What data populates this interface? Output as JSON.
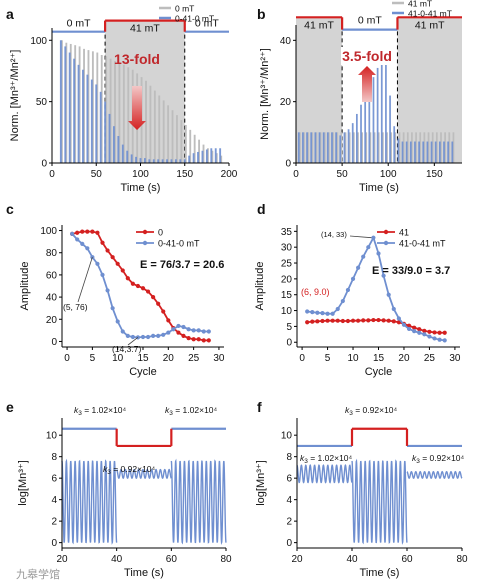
{
  "colors": {
    "red": "#d42020",
    "blue": "#6f8fd0",
    "gray": "#bdbdbd",
    "shade": "#d4d4d4",
    "dark_red": "#c0282c"
  },
  "watermark": {
    "text": "九皋学馆"
  },
  "chart_data": [
    {
      "panel": "a",
      "type": "bar",
      "ylabel": "Norm. [Mn³⁺/Mn²⁺]",
      "xlabel": "Time (s)",
      "xlim": [
        0,
        200
      ],
      "ylim": [
        0,
        110
      ],
      "xticks": [
        "0",
        "50",
        "100",
        "150",
        "200"
      ],
      "yticks": [
        "0",
        "50",
        "100"
      ],
      "field_segments": [
        {
          "label": "0 mT",
          "from": 0,
          "to": 60
        },
        {
          "label": "41 mT",
          "from": 60,
          "to": 150
        },
        {
          "label": "0 mT",
          "from": 150,
          "to": 200
        }
      ],
      "field_levels": {
        "low": 107,
        "high": 116
      },
      "shaded_region": [
        60,
        150
      ],
      "annotation": "13-fold",
      "legend": [
        {
          "name": "0 mT",
          "color": "gray"
        },
        {
          "name": "0-41-0 mT",
          "color": "blue"
        }
      ],
      "series": [
        {
          "name": "0 mT",
          "color": "gray",
          "period": 5.0,
          "start": 10,
          "values": [
            100,
            98,
            97,
            96,
            95,
            93,
            92,
            91,
            90,
            88,
            87,
            85,
            83,
            82,
            80,
            78,
            76,
            73,
            70,
            67,
            63,
            59,
            55,
            51,
            47,
            43,
            39,
            35,
            31,
            27,
            23,
            19,
            15,
            12,
            10,
            8,
            6
          ]
        },
        {
          "name": "0-41-0 mT",
          "color": "blue",
          "period": 5.0,
          "start": 10,
          "values": [
            100,
            95,
            90,
            85,
            80,
            76,
            72,
            68,
            64,
            58,
            50,
            40,
            30,
            22,
            15,
            10,
            7,
            5,
            4,
            4,
            3,
            3,
            3,
            3,
            3,
            3,
            3,
            3,
            3,
            6,
            8,
            9,
            10,
            11,
            12,
            12,
            12
          ]
        }
      ]
    },
    {
      "panel": "b",
      "type": "bar",
      "ylabel": "Norm. [Mn³⁺/Mn²⁺]",
      "xlabel": "Time (s)",
      "xlim": [
        0,
        180
      ],
      "ylim": [
        0,
        45
      ],
      "xticks": [
        "0",
        "50",
        "100",
        "150"
      ],
      "yticks": [
        "0",
        "20",
        "40"
      ],
      "field_segments": [
        {
          "label": "41 mT",
          "from": 0,
          "to": 50
        },
        {
          "label": "0 mT",
          "from": 50,
          "to": 110
        },
        {
          "label": "41 mT",
          "from": 110,
          "to": 180
        }
      ],
      "field_levels": {
        "low": 43.5,
        "high": 47.5
      },
      "shaded_region_list": [
        [
          0,
          50
        ],
        [
          110,
          180
        ]
      ],
      "annotation": "3.5-fold",
      "legend": [
        {
          "name": "41 mT",
          "color": "gray"
        },
        {
          "name": "41-0-41 mT",
          "color": "blue"
        }
      ],
      "series": [
        {
          "name": "41 mT",
          "color": "gray",
          "period": 4.5,
          "start": 3,
          "values": [
            10,
            10,
            10,
            10,
            10,
            10,
            10,
            10,
            10,
            10,
            10,
            10,
            10,
            10,
            10,
            10,
            10,
            10,
            10,
            10,
            10,
            10,
            10,
            10,
            10,
            10,
            10,
            10,
            10,
            10,
            10,
            10,
            10,
            10,
            10,
            10,
            10,
            10
          ]
        },
        {
          "name": "41-0-41 mT",
          "color": "blue",
          "period": 4.5,
          "start": 3,
          "values": [
            10,
            10,
            10,
            10,
            10,
            10,
            10,
            10,
            10,
            10,
            9,
            10,
            11,
            13,
            16,
            19,
            22,
            25,
            28,
            31,
            33,
            33,
            22,
            12,
            8,
            7,
            7,
            7,
            7,
            7,
            7,
            7,
            7,
            7,
            7,
            7,
            7,
            7
          ]
        }
      ]
    },
    {
      "panel": "c",
      "type": "line",
      "ylabel": "Amplitude",
      "xlabel": "Cycle",
      "xlim": [
        -1,
        31
      ],
      "ylim": [
        -5,
        105
      ],
      "xticks": [
        "0",
        "5",
        "10",
        "15",
        "20",
        "25",
        "30"
      ],
      "yticks": [
        "0",
        "20",
        "40",
        "60",
        "80",
        "100"
      ],
      "annotation": "E = 76/3.7 = 20.6",
      "point_labels": [
        "(5, 76)",
        "(14,3.7)"
      ],
      "series": [
        {
          "name": "0",
          "color": "red",
          "x": [
            1,
            2,
            3,
            4,
            5,
            6,
            7,
            8,
            9,
            10,
            11,
            12,
            13,
            14,
            15,
            16,
            17,
            18,
            19,
            20,
            21,
            22,
            23,
            24,
            25,
            26,
            27,
            28
          ],
          "y": [
            97,
            98,
            99,
            99,
            99,
            98,
            89,
            82,
            76,
            70,
            64,
            57,
            52,
            50,
            48,
            45,
            40,
            34,
            27,
            19,
            12,
            8,
            5,
            3,
            2,
            2,
            1,
            1
          ]
        },
        {
          "name": "0-41-0 mT",
          "color": "blue",
          "x": [
            1,
            2,
            3,
            4,
            5,
            6,
            7,
            8,
            9,
            10,
            11,
            12,
            13,
            14,
            15,
            16,
            17,
            18,
            19,
            20,
            21,
            22,
            23,
            24,
            25,
            26,
            27,
            28
          ],
          "y": [
            97,
            92,
            88,
            84,
            76,
            70,
            60,
            46,
            30,
            18,
            9,
            5,
            4,
            3.7,
            4,
            4,
            5,
            5,
            6,
            8,
            11,
            14,
            13,
            11,
            10,
            10,
            9,
            9
          ]
        }
      ]
    },
    {
      "panel": "d",
      "type": "line",
      "ylabel": "Amplitude",
      "xlabel": "Cycle",
      "xlim": [
        -1,
        31
      ],
      "ylim": [
        -1.5,
        37
      ],
      "xticks": [
        "0",
        "5",
        "10",
        "15",
        "20",
        "25",
        "30"
      ],
      "yticks": [
        "0",
        "5",
        "10",
        "15",
        "20",
        "25",
        "30",
        "35"
      ],
      "annotation": "E = 33/9.0 = 3.7",
      "point_labels": [
        "(14, 33)",
        "(6, 9.0)"
      ],
      "series": [
        {
          "name": "41",
          "color": "red",
          "x": [
            1,
            2,
            3,
            4,
            5,
            6,
            7,
            8,
            9,
            10,
            11,
            12,
            13,
            14,
            15,
            16,
            17,
            18,
            19,
            20,
            21,
            22,
            23,
            24,
            25,
            26,
            27,
            28
          ],
          "y": [
            6.3,
            6.5,
            6.6,
            6.7,
            6.8,
            6.8,
            6.8,
            6.7,
            6.7,
            6.8,
            6.8,
            6.9,
            6.9,
            7.0,
            7.0,
            6.9,
            6.8,
            6.6,
            6.3,
            5.8,
            5.2,
            4.6,
            4.1,
            3.6,
            3.3,
            3.1,
            3.0,
            3.0
          ]
        },
        {
          "name": "41-0-41 mT",
          "color": "blue",
          "x": [
            1,
            2,
            3,
            4,
            5,
            6,
            7,
            8,
            9,
            10,
            11,
            12,
            13,
            14,
            15,
            16,
            17,
            18,
            19,
            20,
            21,
            22,
            23,
            24,
            25,
            26,
            27,
            28
          ],
          "y": [
            9.7,
            9.5,
            9.3,
            9.2,
            9.0,
            9.0,
            10.5,
            13,
            16.5,
            20,
            23.5,
            27,
            30,
            33,
            28,
            21,
            15,
            10.5,
            7.5,
            5.5,
            4.2,
            3.5,
            3.0,
            2.5,
            1.8,
            1.2,
            0.8,
            0.6
          ]
        }
      ]
    },
    {
      "panel": "e",
      "type": "line",
      "ylabel": "log[Mn³⁺]",
      "xlabel": "Time (s)",
      "xlim": [
        20,
        80
      ],
      "ylim": [
        -0.5,
        11.6
      ],
      "xticks": [
        "20",
        "40",
        "60",
        "80"
      ],
      "yticks": [
        "0",
        "2",
        "4",
        "6",
        "8",
        "10"
      ],
      "k_labels": [
        "k3 = 1.02×10⁴",
        "k3 = 0.92×10⁴",
        "k3 = 1.02×10⁴"
      ],
      "field_segments": [
        {
          "from": 20,
          "to": 40,
          "level": 10.6,
          "color": "blue"
        },
        {
          "from": 40,
          "to": 60,
          "level": 9.0,
          "color": "red"
        },
        {
          "from": 60,
          "to": 80,
          "level": 10.6,
          "color": "blue"
        }
      ],
      "oscillation": {
        "color": "blue",
        "segments": [
          {
            "from": 20,
            "to": 40,
            "min": 0.0,
            "max": 7.6,
            "period": 1.6
          },
          {
            "from": 40,
            "to": 60,
            "min": 6.0,
            "max": 6.8,
            "period": 1.6
          },
          {
            "from": 60,
            "to": 80,
            "min": 0.0,
            "max": 7.6,
            "period": 1.6
          }
        ]
      }
    },
    {
      "panel": "f",
      "type": "line",
      "ylabel": "log[Mn³⁺]",
      "xlabel": "Time (s)",
      "xlim": [
        20,
        80
      ],
      "ylim": [
        -0.5,
        11.6
      ],
      "xticks": [
        "20",
        "40",
        "60",
        "80"
      ],
      "yticks": [
        "0",
        "2",
        "4",
        "6",
        "8",
        "10"
      ],
      "k_labels": [
        "k3 = 1.02×10⁴",
        "k3 = 0.92×10⁴",
        "k3 = 0.92×10⁴"
      ],
      "field_segments": [
        {
          "from": 20,
          "to": 40,
          "level": 9.0,
          "color": "blue"
        },
        {
          "from": 40,
          "to": 60,
          "level": 10.6,
          "color": "red"
        },
        {
          "from": 60,
          "to": 80,
          "level": 9.0,
          "color": "blue"
        }
      ],
      "oscillation": {
        "color": "blue",
        "segments": [
          {
            "from": 20,
            "to": 40,
            "min": 5.6,
            "max": 7.2,
            "period": 1.6
          },
          {
            "from": 40,
            "to": 60,
            "min": 0.0,
            "max": 7.6,
            "period": 1.6
          },
          {
            "from": 60,
            "to": 80,
            "min": 6.0,
            "max": 6.6,
            "period": 1.6
          }
        ]
      }
    }
  ]
}
